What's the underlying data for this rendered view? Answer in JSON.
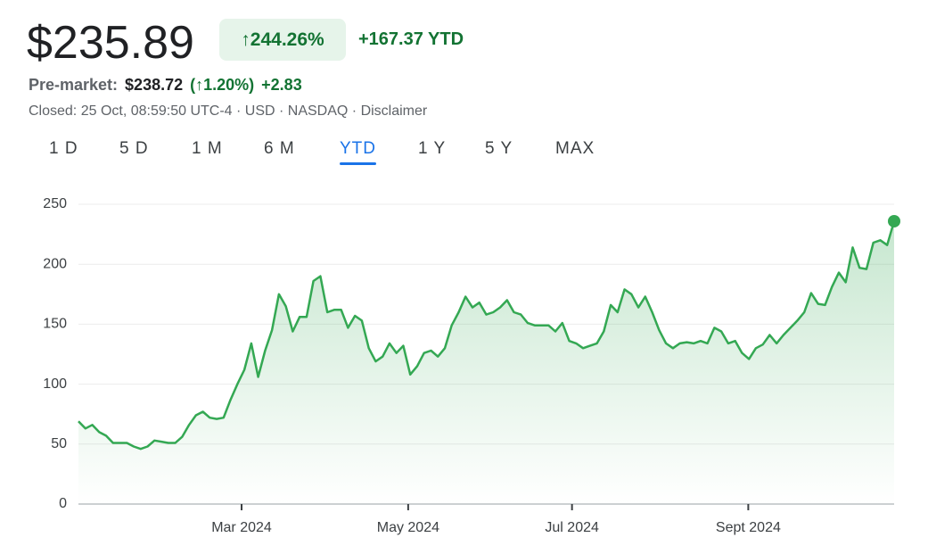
{
  "header": {
    "price": "$235.89",
    "change_pct": "↑244.26%",
    "change_ytd": "+167.37 YTD",
    "premarket_label": "Pre-market:",
    "premarket_price": "$238.72",
    "premarket_pct": "(↑1.20%)",
    "premarket_change": "+2.83",
    "closed": "Closed: 25 Oct, 08:59:50 UTC-4 · USD · NASDAQ · Disclaimer"
  },
  "tabs": [
    "1 D",
    "5 D",
    "1 M",
    "6 M",
    "YTD",
    "1 Y",
    "5 Y",
    "MAX"
  ],
  "selected_tab": 4,
  "chart_data": {
    "type": "line",
    "color": "#34a853",
    "values": [
      69,
      63,
      66,
      60,
      57,
      51,
      51,
      51,
      48,
      46,
      48,
      53,
      52,
      51,
      51,
      56,
      66,
      74,
      77,
      72,
      71,
      72,
      87,
      100,
      112,
      134,
      106,
      128,
      145,
      175,
      165,
      144,
      156,
      156,
      186,
      190,
      160,
      162,
      162,
      147,
      157,
      153,
      130,
      119,
      123,
      134,
      126,
      132,
      108,
      115,
      126,
      128,
      123,
      130,
      149,
      160,
      173,
      164,
      168,
      158,
      160,
      164,
      170,
      160,
      158,
      151,
      149,
      149,
      149,
      144,
      151,
      136,
      134,
      130,
      132,
      134,
      144,
      166,
      160,
      179,
      175,
      164,
      173,
      160,
      145,
      134,
      130,
      134,
      135,
      134,
      136,
      134,
      147,
      144,
      134,
      136,
      126,
      121,
      130,
      133,
      141,
      134,
      141,
      147,
      153,
      160,
      176,
      167,
      166,
      181,
      193,
      185,
      214,
      197,
      196,
      218,
      220,
      216,
      235.89
    ],
    "xlim": [
      0,
      118
    ],
    "xticks": [
      {
        "value": 23.6,
        "label": "Mar 2024"
      },
      {
        "value": 47.7,
        "label": "May 2024"
      },
      {
        "value": 71.4,
        "label": "Jul 2024"
      },
      {
        "value": 96.9,
        "label": "Sept 2024"
      }
    ],
    "ylim": [
      0,
      250
    ],
    "yticks": [
      0,
      50,
      100,
      150,
      200,
      250
    ],
    "grid": true
  }
}
